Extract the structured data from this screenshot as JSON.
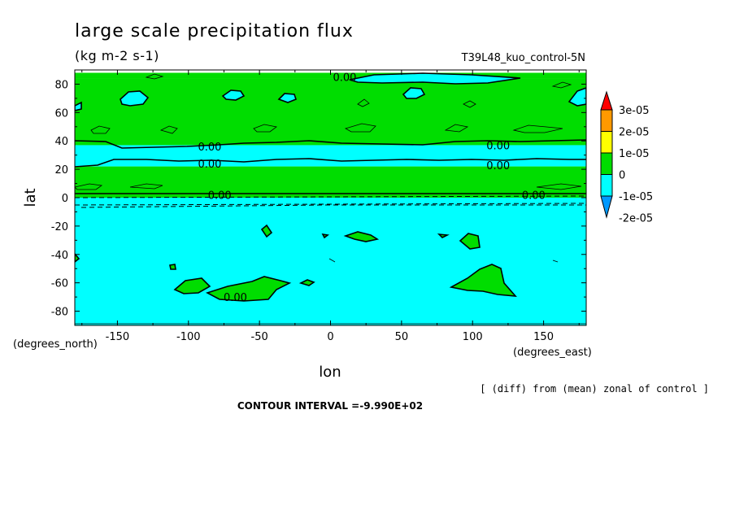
{
  "chart_data": {
    "type": "heatmap",
    "title": "large scale precipitation flux",
    "units": "(kg m-2 s-1)",
    "run_label": "T39L48_kuo_control-5N",
    "xlabel": "lon",
    "ylabel": "lat",
    "x_units": "(degrees_east)",
    "y_units": "(degrees_north)",
    "xlim": [
      -180,
      180
    ],
    "ylim": [
      -90,
      90
    ],
    "x_ticks": [
      -150,
      -100,
      -50,
      0,
      50,
      100,
      150
    ],
    "y_ticks": [
      80,
      60,
      40,
      20,
      0,
      -20,
      -40,
      -60,
      -80
    ],
    "x_tick_labels": [
      "-150",
      "-100",
      "-50",
      "0",
      "50",
      "100",
      "150"
    ],
    "y_tick_labels": [
      "80",
      "60",
      "40",
      "20",
      "0",
      "-20",
      "-40",
      "-60",
      "-80"
    ],
    "colorbar": {
      "labels": [
        "3e-05",
        "2e-05",
        "1e-05",
        "0",
        "-1e-05",
        "-2e-05"
      ],
      "colors": [
        "#ff0000",
        "#ff9900",
        "#ffff00",
        "#00dd00",
        "#00ffff",
        "#0099ff"
      ]
    },
    "bands": [
      {
        "lat_range": [
          84,
          88
        ],
        "level": "0 to 1e-05",
        "color": "#00dd00"
      },
      {
        "lat_range": [
          37,
          84
        ],
        "level": "0 to 1e-05",
        "color": "#00dd00"
      },
      {
        "lat_range": [
          22,
          37
        ],
        "level": "-1e-05 to 0",
        "color": "#00ffff"
      },
      {
        "lat_range": [
          0,
          22
        ],
        "level": "0 to 1e-05",
        "color": "#00dd00"
      },
      {
        "lat_range": [
          -90,
          0
        ],
        "level": "-1e-05 to 0",
        "color": "#00ffff"
      }
    ],
    "contour_labels": [
      {
        "text": "0.00",
        "lon": 10,
        "lat": 85
      },
      {
        "text": "0.00",
        "lon": -85,
        "lat": 36
      },
      {
        "text": "0.00",
        "lon": -85,
        "lat": 24
      },
      {
        "text": "0.00",
        "lon": 118,
        "lat": 37
      },
      {
        "text": "0.00",
        "lon": 118,
        "lat": 23
      },
      {
        "text": "0.00",
        "lon": -78,
        "lat": 2
      },
      {
        "text": "0.00",
        "lon": 143,
        "lat": 2
      },
      {
        "text": "0.00",
        "lon": -67,
        "lat": -70
      }
    ],
    "footer_note": "[ (diff) from (mean) zonal of control ]",
    "contour_interval": "CONTOUR INTERVAL =-9.990E+02"
  }
}
